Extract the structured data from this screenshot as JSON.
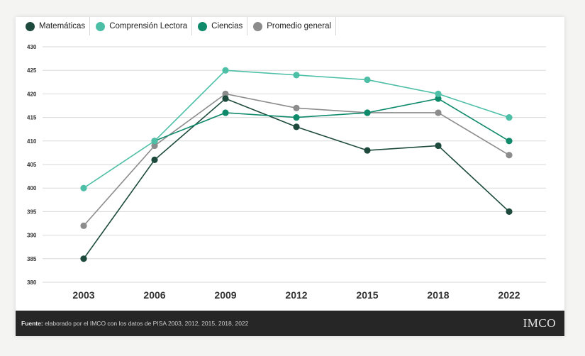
{
  "chart_data": {
    "type": "line",
    "categories": [
      "2003",
      "2006",
      "2009",
      "2012",
      "2015",
      "2018",
      "2022"
    ],
    "ylim": [
      380,
      430
    ],
    "yticks": [
      "380",
      "385",
      "390",
      "395",
      "400",
      "405",
      "410",
      "415",
      "420",
      "425",
      "430"
    ],
    "grid": true,
    "legend_position": "top-left",
    "series": [
      {
        "name": "Matemáticas",
        "color": "#1d4a3c",
        "values": [
          385,
          406,
          419,
          413,
          408,
          409,
          395
        ]
      },
      {
        "name": "Comprensión Lectora",
        "color": "#4dbfa6",
        "values": [
          400,
          410,
          425,
          424,
          423,
          420,
          415
        ]
      },
      {
        "name": "Ciencias",
        "color": "#0f8a6b",
        "values": [
          null,
          410,
          416,
          415,
          416,
          419,
          410
        ]
      },
      {
        "name": "Promedio general",
        "color": "#8c8c8c",
        "values": [
          392,
          409,
          420,
          417,
          416,
          416,
          407
        ]
      }
    ]
  },
  "footer": {
    "source_label": "Fuente:",
    "source_text": " elaborado por el IMCO con los datos de PISA 2003, 2012, 2015, 2018, 2022",
    "logo": "IMCO"
  }
}
